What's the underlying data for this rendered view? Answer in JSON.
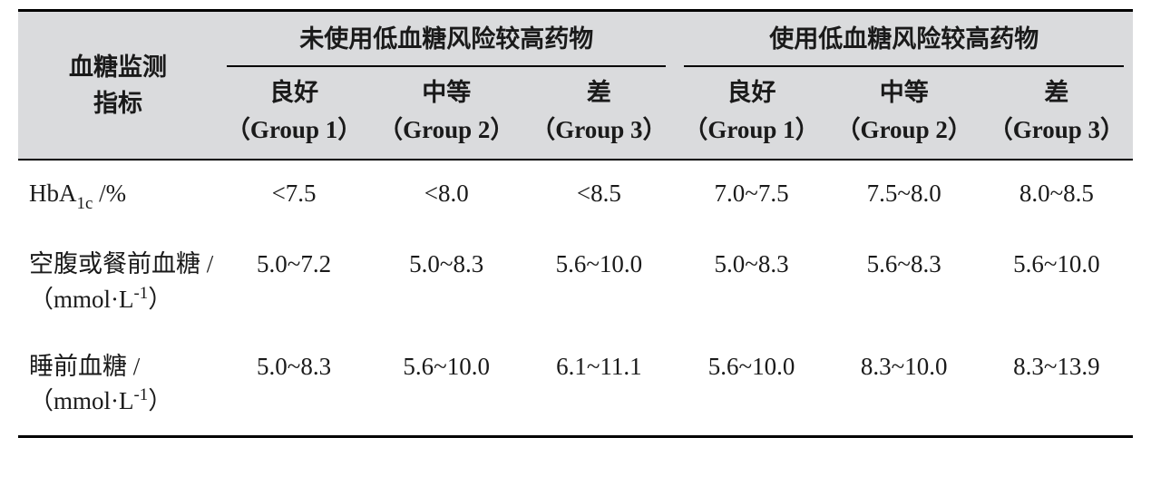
{
  "table": {
    "background_header": "#dadbdd",
    "border_color": "#000000",
    "font_color": "#1a1a1a",
    "row_header_title_line1": "血糖监测",
    "row_header_title_line2": "指标",
    "spanners": [
      {
        "label": "未使用低血糖风险较高药物"
      },
      {
        "label": "使用低血糖风险较高药物"
      }
    ],
    "sub_columns": [
      {
        "line1": "良好",
        "line2": "（Group 1）"
      },
      {
        "line1": "中等",
        "line2": "（Group 2）"
      },
      {
        "line1": "差",
        "line2": "（Group 3）"
      },
      {
        "line1": "良好",
        "line2": "（Group 1）"
      },
      {
        "line1": "中等",
        "line2": "（Group 2）"
      },
      {
        "line1": "差",
        "line2": "（Group 3）"
      }
    ],
    "rows": [
      {
        "label_html": "HbA<span class=\"sub\">1c</span> /%",
        "values": [
          "<7.5",
          "<8.0",
          "<8.5",
          "7.0~7.5",
          "7.5~8.0",
          "8.0~8.5"
        ]
      },
      {
        "label_html": "空腹或餐前血糖 /（mmol·L<span class=\"sup\">-1</span>）",
        "values": [
          "5.0~7.2",
          "5.0~8.3",
          "5.6~10.0",
          "5.0~8.3",
          "5.6~8.3",
          "5.6~10.0"
        ]
      },
      {
        "label_html": "睡前血糖 /<br>（mmol·L<span class=\"sup\">-1</span>）",
        "values": [
          "5.0~8.3",
          "5.6~10.0",
          "6.1~11.1",
          "5.6~10.0",
          "8.3~10.0",
          "8.3~13.9"
        ]
      }
    ]
  }
}
